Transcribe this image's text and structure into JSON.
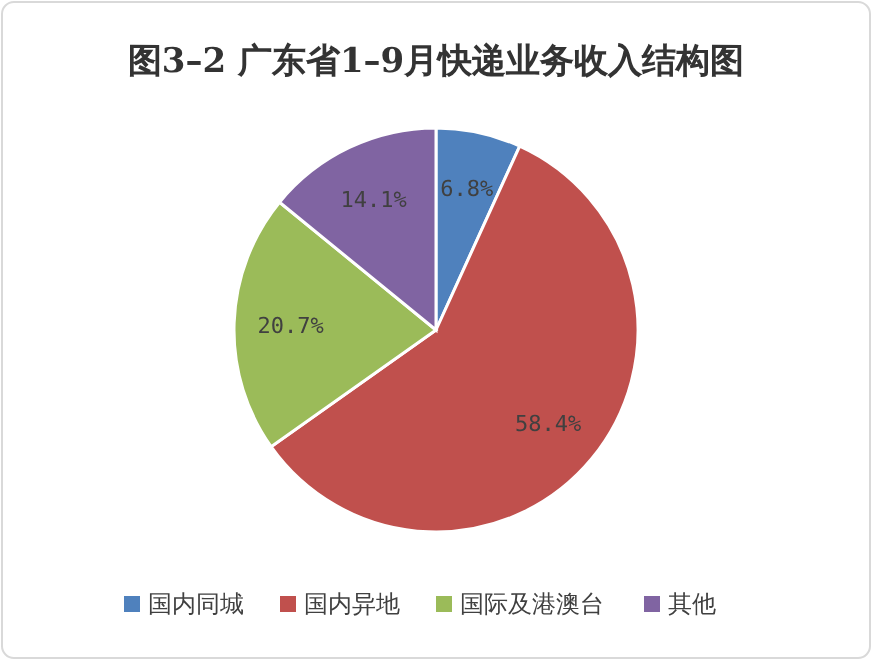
{
  "chart_data": {
    "type": "pie",
    "title": "图3–2 广东省1–9月快递业务收入结构图",
    "categories": [
      "国内同城",
      "国内异地",
      "国际及港澳台",
      "其他"
    ],
    "values": [
      6.8,
      58.4,
      20.7,
      14.1
    ],
    "value_labels": [
      "6.8%",
      "58.4%",
      "20.7%",
      "14.1%"
    ],
    "colors": [
      "#4f81bd",
      "#c0504d",
      "#9bbb59",
      "#8064a2"
    ],
    "legend": "bottom"
  }
}
